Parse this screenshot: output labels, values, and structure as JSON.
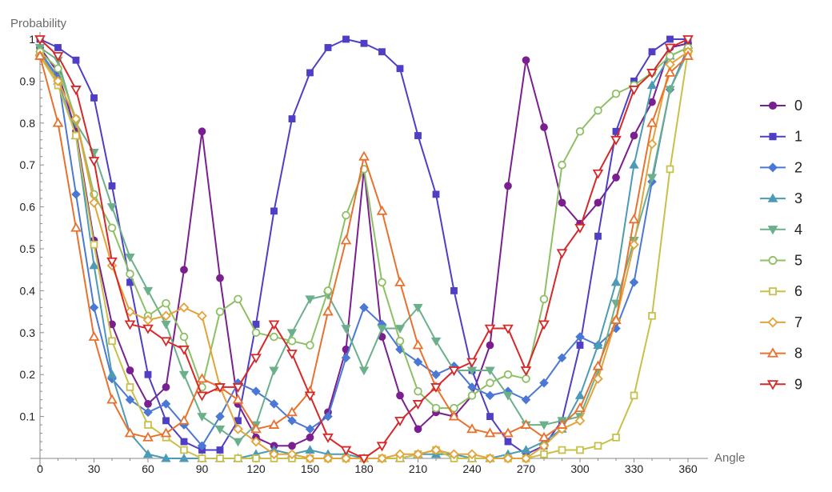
{
  "chart_data": {
    "type": "line",
    "title": "",
    "xlabel": "Angle",
    "ylabel": "Probability",
    "xlim": [
      0,
      360
    ],
    "ylim": [
      0,
      1
    ],
    "x": [
      0,
      10,
      20,
      30,
      40,
      50,
      60,
      70,
      80,
      90,
      100,
      110,
      120,
      130,
      140,
      150,
      160,
      170,
      180,
      190,
      200,
      210,
      220,
      230,
      240,
      250,
      260,
      270,
      280,
      290,
      300,
      310,
      320,
      330,
      340,
      350,
      360
    ],
    "x_ticks": [
      0,
      30,
      60,
      90,
      120,
      150,
      180,
      210,
      240,
      270,
      300,
      330,
      360
    ],
    "x_tick_labels": [
      "0",
      "30",
      "60",
      "90",
      "120",
      "150",
      "180",
      "210",
      "240",
      "270",
      "300",
      "330",
      "360"
    ],
    "y_ticks": [
      0.1,
      0.2,
      0.3,
      0.4,
      0.5,
      0.6,
      0.7,
      0.8,
      0.9,
      1
    ],
    "y_tick_labels": [
      "0.1",
      "0.2",
      "0.3",
      "0.4",
      "0.5",
      "0.6",
      "0.7",
      "0.8",
      "0.9",
      "1"
    ],
    "grid": false,
    "legend_position": "right",
    "series": [
      {
        "name": "0",
        "color": "#7a1f8f",
        "marker": "circle-filled",
        "values": [
          0.98,
          0.92,
          0.78,
          0.52,
          0.32,
          0.21,
          0.13,
          0.17,
          0.45,
          0.78,
          0.43,
          0.13,
          0.05,
          0.03,
          0.03,
          0.05,
          0.11,
          0.26,
          0.69,
          0.29,
          0.15,
          0.07,
          0.11,
          0.1,
          0.15,
          0.27,
          0.65,
          0.95,
          0.79,
          0.61,
          0.56,
          0.61,
          0.67,
          0.77,
          0.85,
          0.98,
          0.99
        ]
      },
      {
        "name": "1",
        "color": "#4e3fc4",
        "marker": "square-filled",
        "values": [
          1.0,
          0.98,
          0.95,
          0.86,
          0.65,
          0.42,
          0.2,
          0.09,
          0.04,
          0.02,
          0.02,
          0.09,
          0.32,
          0.59,
          0.81,
          0.92,
          0.98,
          1.0,
          0.99,
          0.97,
          0.93,
          0.77,
          0.63,
          0.4,
          0.21,
          0.1,
          0.04,
          0.01,
          0.03,
          0.09,
          0.27,
          0.53,
          0.78,
          0.9,
          0.97,
          1.0,
          1.0
        ]
      },
      {
        "name": "2",
        "color": "#4a78d4",
        "marker": "diamond-filled",
        "values": [
          0.97,
          0.91,
          0.63,
          0.36,
          0.19,
          0.14,
          0.11,
          0.13,
          0.08,
          0.03,
          0.1,
          0.18,
          0.16,
          0.13,
          0.09,
          0.07,
          0.1,
          0.24,
          0.36,
          0.32,
          0.26,
          0.23,
          0.2,
          0.22,
          0.17,
          0.15,
          0.16,
          0.14,
          0.18,
          0.24,
          0.29,
          0.27,
          0.31,
          0.42,
          0.66,
          0.88,
          0.98
        ]
      },
      {
        "name": "3",
        "color": "#4c9bb6",
        "marker": "triangle-up-filled",
        "values": [
          0.97,
          0.9,
          0.77,
          0.46,
          0.2,
          0.06,
          0.01,
          0.0,
          0.0,
          0.0,
          0.0,
          0.0,
          0.01,
          0.02,
          0.01,
          0.02,
          0.01,
          0.01,
          0.0,
          0.0,
          0.0,
          0.01,
          0.01,
          0.01,
          0.0,
          0.0,
          0.01,
          0.02,
          0.04,
          0.07,
          0.15,
          0.27,
          0.42,
          0.7,
          0.89,
          0.96,
          0.98
        ]
      },
      {
        "name": "4",
        "color": "#6bb08b",
        "marker": "triangle-down-filled",
        "values": [
          0.98,
          0.95,
          0.8,
          0.73,
          0.6,
          0.48,
          0.4,
          0.32,
          0.2,
          0.1,
          0.07,
          0.04,
          0.08,
          0.21,
          0.3,
          0.38,
          0.39,
          0.31,
          0.21,
          0.31,
          0.31,
          0.36,
          0.28,
          0.21,
          0.21,
          0.21,
          0.15,
          0.08,
          0.08,
          0.09,
          0.1,
          0.21,
          0.37,
          0.52,
          0.67,
          0.88,
          0.97
        ]
      },
      {
        "name": "5",
        "color": "#8dc064",
        "marker": "circle-open",
        "values": [
          0.97,
          0.93,
          0.81,
          0.63,
          0.55,
          0.44,
          0.34,
          0.37,
          0.29,
          0.17,
          0.35,
          0.38,
          0.3,
          0.29,
          0.28,
          0.27,
          0.4,
          0.58,
          0.69,
          0.42,
          0.28,
          0.16,
          0.12,
          0.12,
          0.15,
          0.18,
          0.2,
          0.19,
          0.38,
          0.7,
          0.78,
          0.83,
          0.87,
          0.89,
          0.92,
          0.96,
          0.98
        ]
      },
      {
        "name": "6",
        "color": "#c9c04a",
        "marker": "square-open",
        "values": [
          0.96,
          0.89,
          0.77,
          0.51,
          0.28,
          0.17,
          0.08,
          0.05,
          0.02,
          0.0,
          0.0,
          0.0,
          0.0,
          0.0,
          0.0,
          0.0,
          0.0,
          0.0,
          0.0,
          0.0,
          0.0,
          0.01,
          0.02,
          0.0,
          0.0,
          0.0,
          0.0,
          0.0,
          0.01,
          0.02,
          0.02,
          0.03,
          0.05,
          0.15,
          0.34,
          0.69,
          0.97
        ]
      },
      {
        "name": "7",
        "color": "#e4a33a",
        "marker": "diamond-open",
        "values": [
          0.96,
          0.9,
          0.81,
          0.61,
          0.46,
          0.35,
          0.33,
          0.34,
          0.36,
          0.34,
          0.17,
          0.07,
          0.04,
          0.01,
          0.01,
          0.0,
          0.0,
          0.0,
          0.0,
          0.0,
          0.01,
          0.01,
          0.02,
          0.01,
          0.01,
          0.0,
          0.0,
          0.0,
          0.03,
          0.07,
          0.09,
          0.19,
          0.33,
          0.51,
          0.75,
          0.94,
          0.97
        ]
      },
      {
        "name": "8",
        "color": "#e8712e",
        "marker": "triangle-up-open",
        "values": [
          0.96,
          0.8,
          0.55,
          0.29,
          0.14,
          0.06,
          0.05,
          0.06,
          0.09,
          0.19,
          0.17,
          0.14,
          0.07,
          0.08,
          0.11,
          0.16,
          0.35,
          0.52,
          0.72,
          0.59,
          0.42,
          0.27,
          0.17,
          0.1,
          0.07,
          0.06,
          0.06,
          0.08,
          0.05,
          0.08,
          0.12,
          0.22,
          0.33,
          0.57,
          0.8,
          0.92,
          0.96
        ]
      },
      {
        "name": "9",
        "color": "#d62828",
        "marker": "triangle-down-open",
        "values": [
          1.0,
          0.96,
          0.88,
          0.71,
          0.47,
          0.32,
          0.31,
          0.28,
          0.26,
          0.15,
          0.17,
          0.17,
          0.24,
          0.32,
          0.25,
          0.15,
          0.05,
          0.02,
          0.0,
          0.03,
          0.09,
          0.13,
          0.17,
          0.21,
          0.23,
          0.31,
          0.31,
          0.21,
          0.32,
          0.49,
          0.55,
          0.68,
          0.76,
          0.88,
          0.92,
          0.98,
          1.0
        ]
      }
    ]
  }
}
